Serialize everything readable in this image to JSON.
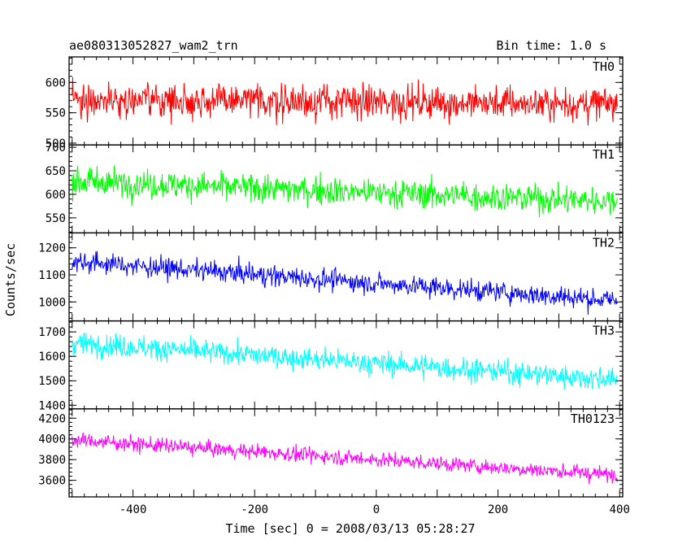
{
  "header": {
    "title": "ae080313052827_wam2_trn",
    "bin_time": "Bin time: 1.0 s"
  },
  "chart_data": {
    "type": "line",
    "title": "ae080313052827_wam2_trn",
    "subtitle": "Bin time: 1.0 s",
    "xlabel": "Time [sec] 0 = 2008/03/13 05:28:27",
    "ylabel": "Counts/sec",
    "xlim": [
      -505,
      405
    ],
    "x_ticks": [
      -400,
      -200,
      0,
      200,
      400
    ],
    "x_start": -500,
    "x_end": 396,
    "grid": false,
    "panels": [
      {
        "name": "TH0",
        "color": "#ff0000",
        "ylim": [
          497,
          642
        ],
        "y_ticks": [
          500,
          550,
          600
        ],
        "trend_start": 572,
        "trend_end": 564,
        "noise": 24
      },
      {
        "name": "TH1",
        "color": "#00ff00",
        "ylim": [
          518,
          705
        ],
        "y_ticks": [
          550,
          600,
          650,
          700
        ],
        "trend_start": 628,
        "trend_end": 585,
        "noise": 26
      },
      {
        "name": "TH2",
        "color": "#0000ff",
        "ylim": [
          930,
          1255
        ],
        "y_ticks": [
          1000,
          1100,
          1200
        ],
        "trend_start": 1150,
        "trend_end": 1005,
        "noise": 33
      },
      {
        "name": "TH3",
        "color": "#00ffff",
        "ylim": [
          1385,
          1745
        ],
        "y_ticks": [
          1400,
          1500,
          1600,
          1700
        ],
        "trend_start": 1655,
        "trend_end": 1505,
        "noise": 40
      },
      {
        "name": "TH0123",
        "color": "#ff00ff",
        "ylim": [
          3440,
          4290
        ],
        "y_ticks": [
          3600,
          3800,
          4000,
          4200
        ],
        "trend_start": 3990,
        "trend_end": 3650,
        "noise": 62
      }
    ]
  }
}
